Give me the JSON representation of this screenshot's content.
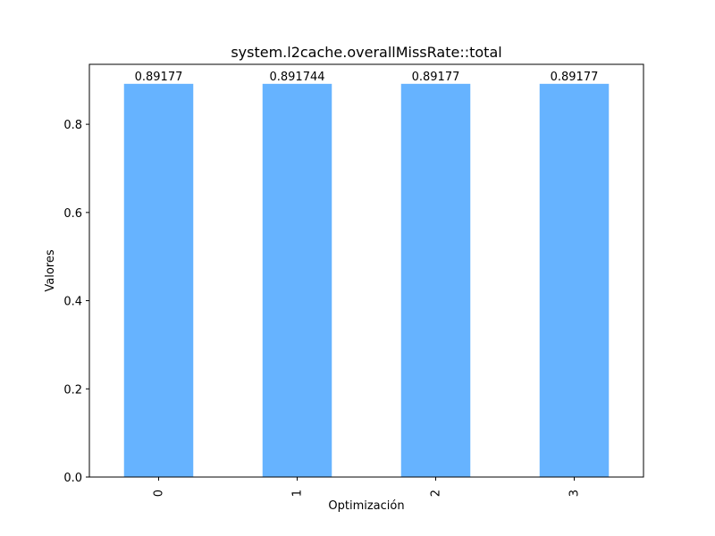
{
  "chart_data": {
    "type": "bar",
    "title": "system.l2cache.overallMissRate::total",
    "xlabel": "Optimización",
    "ylabel": "Valores",
    "categories": [
      "0",
      "1",
      "2",
      "3"
    ],
    "values": [
      0.89177,
      0.891744,
      0.89177,
      0.89177
    ],
    "value_labels": [
      "0.89177",
      "0.891744",
      "0.89177",
      "0.89177"
    ],
    "ylim": [
      0,
      0.936
    ],
    "yticks": [
      0.0,
      0.2,
      0.4,
      0.6,
      0.8
    ],
    "ytick_labels": [
      "0.0",
      "0.2",
      "0.4",
      "0.6",
      "0.8"
    ],
    "bar_color": "#66b3ff",
    "grid": false,
    "legend": "none"
  }
}
